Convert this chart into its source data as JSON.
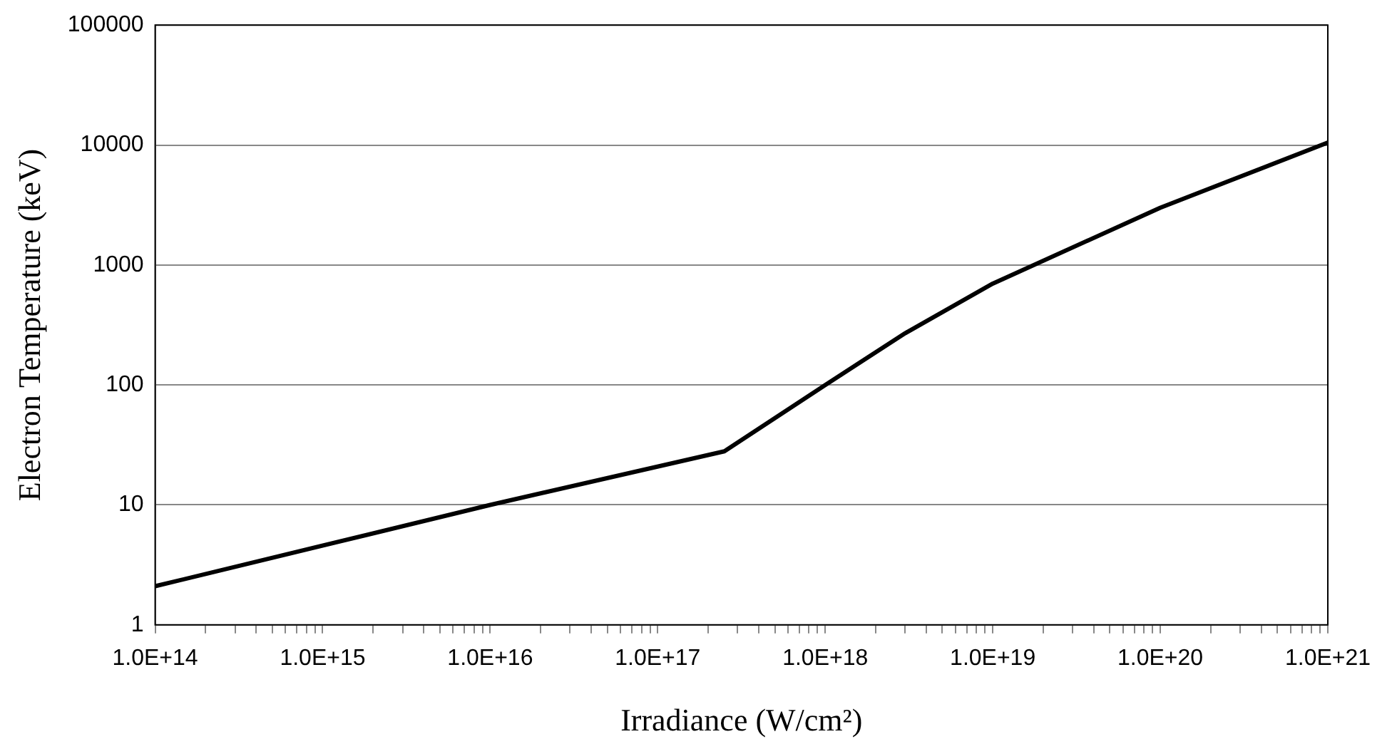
{
  "chart_data": {
    "type": "line",
    "xlabel": "Irradiance (W/cm²)",
    "ylabel": "Electron Temperature (keV)",
    "x": [
      100000000000000.0,
      1e+16,
      2.5e+17,
      1e+18,
      3e+18,
      1e+19,
      1e+20,
      1e+21
    ],
    "series": [
      {
        "color": "#000000",
        "values": [
          2.1,
          10,
          28,
          100,
          270,
          700,
          3000,
          10500
        ]
      }
    ],
    "log": "xy",
    "xlim": [
      100000000000000.0,
      1e+21
    ],
    "ylim": [
      1,
      100000
    ],
    "xticks": [
      {
        "value": 100000000000000.0,
        "label": "1.0E+14"
      },
      {
        "value": 200000000000000.0,
        "label": null
      },
      {
        "value": 300000000000000.0,
        "label": null
      },
      {
        "value": 400000000000000.0,
        "label": null
      },
      {
        "value": 500000000000000.0,
        "label": null
      },
      {
        "value": 600000000000000.0,
        "label": null
      },
      {
        "value": 700000000000000.0,
        "label": null
      },
      {
        "value": 800000000000000.0,
        "label": null
      },
      {
        "value": 900000000000000.0,
        "label": null
      },
      {
        "value": 1000000000000000.0,
        "label": "1.0E+15"
      },
      {
        "value": 2000000000000000.0,
        "label": null
      },
      {
        "value": 3000000000000000.0,
        "label": null
      },
      {
        "value": 4000000000000000.0,
        "label": null
      },
      {
        "value": 5000000000000000.0,
        "label": null
      },
      {
        "value": 6000000000000000.0,
        "label": null
      },
      {
        "value": 7000000000000000.0,
        "label": null
      },
      {
        "value": 8000000000000000.0,
        "label": null
      },
      {
        "value": 9000000000000000.0,
        "label": null
      },
      {
        "value": 1e+16,
        "label": "1.0E+16"
      },
      {
        "value": 2e+16,
        "label": null
      },
      {
        "value": 3e+16,
        "label": null
      },
      {
        "value": 4e+16,
        "label": null
      },
      {
        "value": 5e+16,
        "label": null
      },
      {
        "value": 6e+16,
        "label": null
      },
      {
        "value": 7e+16,
        "label": null
      },
      {
        "value": 8e+16,
        "label": null
      },
      {
        "value": 9e+16,
        "label": null
      },
      {
        "value": 1e+17,
        "label": "1.0E+17"
      },
      {
        "value": 2e+17,
        "label": null
      },
      {
        "value": 3e+17,
        "label": null
      },
      {
        "value": 4e+17,
        "label": null
      },
      {
        "value": 5e+17,
        "label": null
      },
      {
        "value": 6e+17,
        "label": null
      },
      {
        "value": 7e+17,
        "label": null
      },
      {
        "value": 8e+17,
        "label": null
      },
      {
        "value": 9e+17,
        "label": null
      },
      {
        "value": 1e+18,
        "label": "1.0E+18"
      },
      {
        "value": 2e+18,
        "label": null
      },
      {
        "value": 3e+18,
        "label": null
      },
      {
        "value": 4e+18,
        "label": null
      },
      {
        "value": 5e+18,
        "label": null
      },
      {
        "value": 6e+18,
        "label": null
      },
      {
        "value": 7e+18,
        "label": null
      },
      {
        "value": 8e+18,
        "label": null
      },
      {
        "value": 9e+18,
        "label": null
      },
      {
        "value": 1e+19,
        "label": "1.0E+19"
      },
      {
        "value": 2e+19,
        "label": null
      },
      {
        "value": 3e+19,
        "label": null
      },
      {
        "value": 4e+19,
        "label": null
      },
      {
        "value": 5e+19,
        "label": null
      },
      {
        "value": 6e+19,
        "label": null
      },
      {
        "value": 7e+19,
        "label": null
      },
      {
        "value": 8e+19,
        "label": null
      },
      {
        "value": 9e+19,
        "label": null
      },
      {
        "value": 1e+20,
        "label": "1.0E+20"
      },
      {
        "value": 2e+20,
        "label": null
      },
      {
        "value": 3e+20,
        "label": null
      },
      {
        "value": 4e+20,
        "label": null
      },
      {
        "value": 5e+20,
        "label": null
      },
      {
        "value": 6e+20,
        "label": null
      },
      {
        "value": 7e+20,
        "label": null
      },
      {
        "value": 8e+20,
        "label": null
      },
      {
        "value": 9e+20,
        "label": null
      },
      {
        "value": 1e+21,
        "label": "1.0E+21"
      }
    ],
    "yticks": [
      1,
      10,
      100,
      1000,
      10000,
      100000
    ],
    "grid": "y",
    "legend": false,
    "marker": "none",
    "line_style": "solid"
  }
}
